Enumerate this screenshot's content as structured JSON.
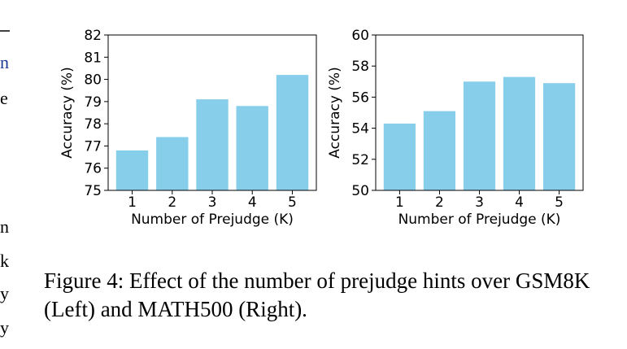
{
  "caption": "Figure 4: Effect of the number of prejudge hints over GSM8K (Left) and MATH500 (Right).",
  "margin_fragments": [
    {
      "text": "n",
      "color": "#1f3a93"
    },
    {
      "text": "e",
      "color": "#000000"
    },
    {
      "text": "n",
      "color": "#000000"
    },
    {
      "text": "k",
      "color": "#000000"
    },
    {
      "text": "y",
      "color": "#000000"
    },
    {
      "text": "y",
      "color": "#000000"
    }
  ],
  "colors": {
    "bar": "#87ceeb",
    "axis": "#000000"
  },
  "chart_data": [
    {
      "type": "bar",
      "categories": [
        "1",
        "2",
        "3",
        "4",
        "5"
      ],
      "values": [
        76.8,
        77.4,
        79.1,
        78.8,
        80.2
      ],
      "title": "",
      "xlabel": "Number of Prejudge (K)",
      "ylabel": "Accuracy (%)",
      "ylim": [
        75,
        82
      ],
      "yticks": [
        75,
        76,
        77,
        78,
        79,
        80,
        81,
        82
      ],
      "grid": false
    },
    {
      "type": "bar",
      "categories": [
        "1",
        "2",
        "3",
        "4",
        "5"
      ],
      "values": [
        54.3,
        55.1,
        57.0,
        57.3,
        56.9
      ],
      "title": "",
      "xlabel": "Number of Prejudge (K)",
      "ylabel": "Accuracy (%)",
      "ylim": [
        50,
        60
      ],
      "yticks": [
        50,
        52,
        54,
        56,
        58,
        60
      ],
      "grid": false
    }
  ]
}
